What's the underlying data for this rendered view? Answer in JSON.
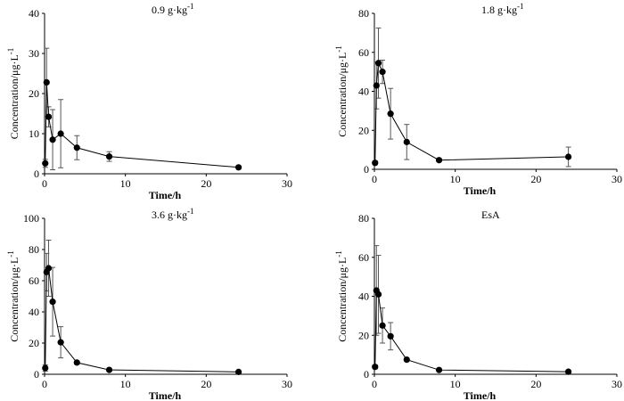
{
  "chart_data": [
    {
      "type": "line",
      "title": "0.9 g·kg",
      "title_sup": "-1",
      "xlabel": "Time/h",
      "ylabel": "Concentration/μg·L",
      "ylabel_sup": "-1",
      "xlim": [
        0,
        30
      ],
      "ylim": [
        0,
        40
      ],
      "xticks": [
        0,
        10,
        20,
        30
      ],
      "yticks": [
        0,
        10,
        20,
        30,
        40
      ],
      "x": [
        0.083,
        0.25,
        0.5,
        1,
        2,
        4,
        8,
        24
      ],
      "y": [
        2.6,
        22.8,
        14.2,
        8.5,
        10.0,
        6.5,
        4.3,
        1.6
      ],
      "err": [
        1.0,
        8.5,
        2.5,
        7.5,
        8.5,
        3.0,
        1.2,
        0.4
      ]
    },
    {
      "type": "line",
      "title": "1.8 g·kg",
      "title_sup": "-1",
      "xlabel": "Time/h",
      "ylabel": "Concentration/μg·L",
      "ylabel_sup": "-1",
      "xlim": [
        0,
        30
      ],
      "ylim": [
        0,
        80
      ],
      "xticks": [
        0,
        10,
        20,
        30
      ],
      "yticks": [
        0,
        20,
        40,
        60,
        80
      ],
      "x": [
        0.083,
        0.25,
        0.5,
        1,
        2,
        4,
        8,
        24
      ],
      "y": [
        3.3,
        43.0,
        54.5,
        50.0,
        28.5,
        14.0,
        4.7,
        6.4
      ],
      "err": [
        1.0,
        12.0,
        18.0,
        6.0,
        13.0,
        9.0,
        0.8,
        5.0
      ]
    },
    {
      "type": "line",
      "title": "3.6 g·kg",
      "title_sup": "-1",
      "xlabel": "Time/h",
      "ylabel": "Concentration/μg·L",
      "ylabel_sup": "-1",
      "xlim": [
        0,
        30
      ],
      "ylim": [
        0,
        100
      ],
      "xticks": [
        0,
        10,
        20,
        30
      ],
      "yticks": [
        0,
        20,
        40,
        60,
        80,
        100
      ],
      "x": [
        0.083,
        0.25,
        0.5,
        1,
        2,
        4,
        8,
        24
      ],
      "y": [
        4.0,
        65.5,
        68.0,
        46.5,
        20.5,
        7.5,
        2.8,
        1.5
      ],
      "err": [
        2.0,
        12.0,
        18.0,
        22.0,
        10.0,
        1.0,
        0.5,
        0.3
      ]
    },
    {
      "type": "line",
      "title": "EsA",
      "title_sup": "",
      "xlabel": "Time/h",
      "ylabel": "Concentration/μg·L",
      "ylabel_sup": "-1",
      "xlim": [
        0,
        30
      ],
      "ylim": [
        0,
        80
      ],
      "xticks": [
        0,
        10,
        20,
        30
      ],
      "yticks": [
        0,
        20,
        40,
        60,
        80
      ],
      "x": [
        0.083,
        0.25,
        0.5,
        1,
        2,
        4,
        8,
        24
      ],
      "y": [
        3.8,
        43.0,
        41.0,
        25.0,
        19.5,
        7.5,
        2.2,
        1.3
      ],
      "err": [
        1.0,
        23.0,
        20.0,
        9.0,
        7.0,
        0.8,
        0.5,
        0.3
      ]
    }
  ]
}
